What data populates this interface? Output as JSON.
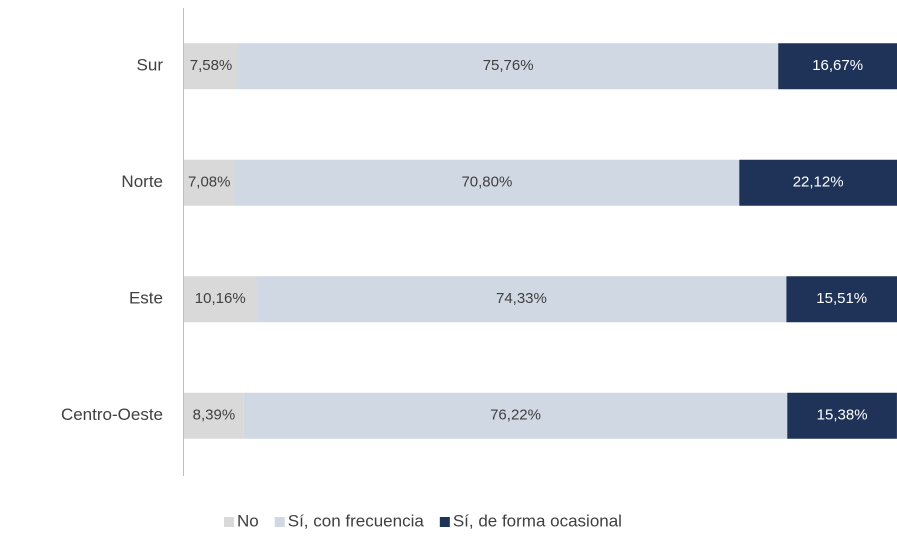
{
  "chart_data": {
    "type": "stacked-bar-horizontal",
    "categories": [
      "Sur",
      "Norte",
      "Este",
      "Centro-Oeste"
    ],
    "xlim": [
      0,
      100
    ],
    "series": [
      {
        "name": "No",
        "color": "#d9d9d9",
        "values": [
          7.58,
          7.08,
          10.16,
          8.39
        ],
        "value_labels": [
          "7,58%",
          "7,08%",
          "10,16%",
          "8,39%"
        ]
      },
      {
        "name": "Sí, con frecuencia",
        "color": "#d0d8e3",
        "values": [
          75.76,
          70.8,
          74.33,
          76.22
        ],
        "value_labels": [
          "75,76%",
          "70,80%",
          "74,33%",
          "76,22%"
        ]
      },
      {
        "name": "Sí, de forma ocasional",
        "color": "#1f3358",
        "values": [
          16.67,
          22.12,
          15.51,
          15.38
        ],
        "value_labels": [
          "16,67%",
          "22,12%",
          "15,51%",
          "15,38%"
        ]
      }
    ],
    "legend": "bottom"
  }
}
